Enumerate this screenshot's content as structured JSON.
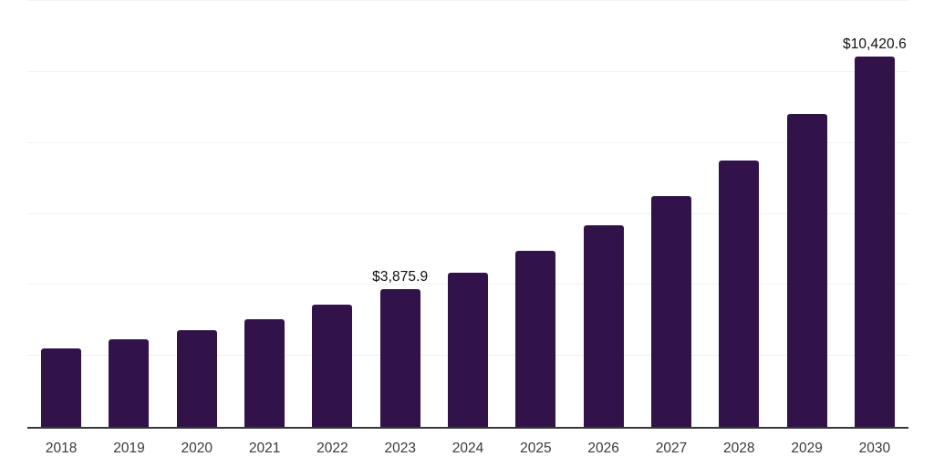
{
  "chart_data": {
    "type": "bar",
    "title": "",
    "xlabel": "",
    "ylabel": "",
    "categories": [
      "2018",
      "2019",
      "2020",
      "2021",
      "2022",
      "2023",
      "2024",
      "2025",
      "2026",
      "2027",
      "2028",
      "2029",
      "2030"
    ],
    "values": [
      2210,
      2460,
      2715,
      3030,
      3445,
      3875.9,
      4350,
      4955,
      5670,
      6510,
      7515,
      8810,
      10420.6
    ],
    "value_labels": [
      "",
      "",
      "",
      "",
      "",
      "$3,875.9",
      "",
      "",
      "",
      "",
      "",
      "",
      "$10,420.6"
    ],
    "ylim": [
      0,
      12000
    ],
    "gridline_step": 2000,
    "grid": true,
    "legend": false,
    "colors": {
      "bar": "#31134a",
      "axis_line": "#38383c",
      "gridline": "#f2f2f5",
      "value_label_text": "#0e0e0e",
      "tick_text": "#3a3a3a",
      "background": "#ffffff"
    }
  }
}
